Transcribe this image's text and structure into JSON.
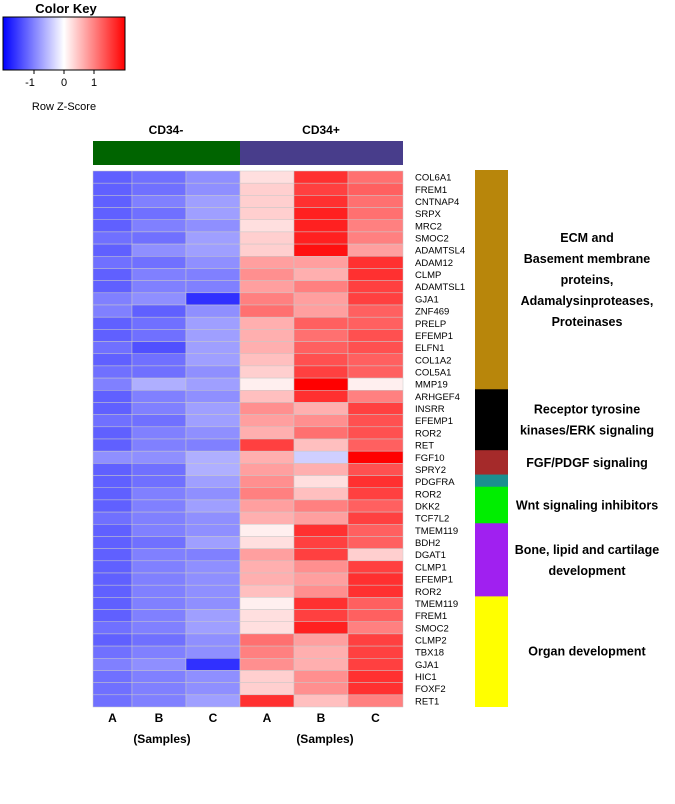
{
  "colors": {
    "low": "#0000ff",
    "mid": "#ffffff",
    "high": "#ff0000",
    "cd34neg": "#006400",
    "cd34pos": "#483d8b"
  },
  "color_key": {
    "title": "Color Key",
    "ticks": [
      "-1",
      "0",
      "1"
    ],
    "label": "Row Z-Score"
  },
  "chart_data": {
    "type": "heatmap",
    "title": "",
    "value_range": [
      -1.6,
      1.6
    ],
    "groups": [
      {
        "name": "CD34-",
        "columns": [
          "A",
          "B",
          "C"
        ]
      },
      {
        "name": "CD34+",
        "columns": [
          "A",
          "B",
          "C"
        ]
      }
    ],
    "columns": [
      "A",
      "B",
      "C",
      "A",
      "B",
      "C"
    ],
    "xlabel_groups": [
      "(Samples)",
      "(Samples)"
    ],
    "rows": [
      {
        "gene": "COL6A1",
        "values": [
          -1.0,
          -0.9,
          -0.7,
          0.2,
          1.3,
          0.9
        ]
      },
      {
        "gene": "FREM1",
        "values": [
          -1.0,
          -0.9,
          -0.7,
          0.3,
          1.2,
          1.0
        ]
      },
      {
        "gene": "CNTNAP4",
        "values": [
          -1.0,
          -0.8,
          -0.6,
          0.3,
          1.3,
          0.9
        ]
      },
      {
        "gene": "SRPX",
        "values": [
          -1.0,
          -0.9,
          -0.6,
          0.3,
          1.4,
          0.9
        ]
      },
      {
        "gene": "MRC2",
        "values": [
          -1.0,
          -0.8,
          -0.7,
          0.2,
          1.4,
          0.8
        ]
      },
      {
        "gene": "SMOC2",
        "values": [
          -0.9,
          -0.9,
          -0.6,
          0.3,
          1.4,
          0.8
        ]
      },
      {
        "gene": "ADAMTSL4",
        "values": [
          -1.0,
          -0.7,
          -0.6,
          0.3,
          1.5,
          0.6
        ]
      },
      {
        "gene": "ADAM12",
        "values": [
          -0.9,
          -0.9,
          -0.7,
          0.6,
          0.6,
          1.3
        ]
      },
      {
        "gene": "CLMP",
        "values": [
          -1.0,
          -0.8,
          -0.8,
          0.7,
          0.5,
          1.3
        ]
      },
      {
        "gene": "ADAMTSL1",
        "values": [
          -1.0,
          -0.8,
          -0.8,
          0.6,
          0.8,
          1.2
        ]
      },
      {
        "gene": "GJA1",
        "values": [
          -0.8,
          -0.7,
          -1.3,
          0.8,
          0.6,
          1.2
        ]
      },
      {
        "gene": "ZNF469",
        "values": [
          -0.8,
          -1.0,
          -0.7,
          0.9,
          0.6,
          1.0
        ]
      },
      {
        "gene": "PRELP",
        "values": [
          -1.0,
          -0.9,
          -0.6,
          0.5,
          1.0,
          1.0
        ]
      },
      {
        "gene": "EFEMP1",
        "values": [
          -1.0,
          -0.9,
          -0.6,
          0.5,
          0.9,
          1.1
        ]
      },
      {
        "gene": "ELFN1",
        "values": [
          -0.9,
          -1.1,
          -0.6,
          0.5,
          1.0,
          1.1
        ]
      },
      {
        "gene": "COL1A2",
        "values": [
          -1.0,
          -0.9,
          -0.6,
          0.4,
          1.1,
          1.0
        ]
      },
      {
        "gene": "COL5A1",
        "values": [
          -0.9,
          -0.9,
          -0.7,
          0.3,
          1.2,
          1.0
        ]
      },
      {
        "gene": "MMP19",
        "values": [
          -0.8,
          -0.5,
          -0.6,
          0.1,
          1.6,
          0.1
        ]
      },
      {
        "gene": "ARHGEF4",
        "values": [
          -1.0,
          -0.8,
          -0.7,
          0.4,
          1.3,
          0.8
        ]
      },
      {
        "gene": "INSRR",
        "values": [
          -1.0,
          -0.8,
          -0.6,
          0.7,
          0.5,
          1.2
        ]
      },
      {
        "gene": "EFEMP1",
        "values": [
          -0.9,
          -0.9,
          -0.6,
          0.6,
          0.7,
          1.1
        ]
      },
      {
        "gene": "ROR2",
        "values": [
          -1.0,
          -0.8,
          -0.7,
          0.5,
          0.9,
          1.1
        ]
      },
      {
        "gene": "RET",
        "values": [
          -1.0,
          -0.8,
          -0.8,
          1.2,
          0.4,
          1.0
        ]
      },
      {
        "gene": "FGF10",
        "values": [
          -0.7,
          -0.7,
          -0.5,
          0.5,
          -0.3,
          1.6
        ]
      },
      {
        "gene": "SPRY2",
        "values": [
          -1.0,
          -0.9,
          -0.5,
          0.6,
          0.5,
          1.1
        ]
      },
      {
        "gene": "PDGFRA",
        "values": [
          -1.0,
          -0.9,
          -0.6,
          0.7,
          0.2,
          1.3
        ]
      },
      {
        "gene": "ROR2",
        "values": [
          -1.0,
          -0.8,
          -0.7,
          0.8,
          0.4,
          1.2
        ]
      },
      {
        "gene": "DKK2",
        "values": [
          -1.0,
          -0.8,
          -0.6,
          0.6,
          0.8,
          1.0
        ]
      },
      {
        "gene": "TCF7L2",
        "values": [
          -0.9,
          -0.8,
          -0.7,
          0.5,
          0.6,
          1.2
        ]
      },
      {
        "gene": "TMEM119",
        "values": [
          -1.0,
          -0.8,
          -0.7,
          0.1,
          1.3,
          1.0
        ]
      },
      {
        "gene": "BDH2",
        "values": [
          -1.0,
          -0.9,
          -0.6,
          0.2,
          1.2,
          1.0
        ]
      },
      {
        "gene": "DGAT1",
        "values": [
          -1.0,
          -0.8,
          -0.8,
          0.6,
          1.2,
          0.3
        ]
      },
      {
        "gene": "CLMP1",
        "values": [
          -1.0,
          -0.8,
          -0.7,
          0.5,
          0.7,
          1.2
        ]
      },
      {
        "gene": "EFEMP1",
        "values": [
          -1.0,
          -0.8,
          -0.7,
          0.5,
          0.6,
          1.3
        ]
      },
      {
        "gene": "ROR2",
        "values": [
          -1.0,
          -0.8,
          -0.7,
          0.4,
          0.7,
          1.3
        ]
      },
      {
        "gene": "TMEM119",
        "values": [
          -1.0,
          -0.8,
          -0.7,
          0.1,
          1.3,
          1.0
        ]
      },
      {
        "gene": "FREM1",
        "values": [
          -1.0,
          -0.8,
          -0.6,
          0.2,
          1.2,
          1.0
        ]
      },
      {
        "gene": "SMOC2",
        "values": [
          -0.9,
          -0.8,
          -0.6,
          0.2,
          1.4,
          0.8
        ]
      },
      {
        "gene": "CLMP2",
        "values": [
          -1.0,
          -0.9,
          -0.7,
          0.9,
          0.6,
          1.2
        ]
      },
      {
        "gene": "TBX18",
        "values": [
          -0.9,
          -0.8,
          -0.7,
          0.8,
          0.5,
          1.2
        ]
      },
      {
        "gene": "GJA1",
        "values": [
          -0.8,
          -0.7,
          -1.3,
          0.7,
          0.5,
          1.2
        ]
      },
      {
        "gene": "HIC1",
        "values": [
          -0.9,
          -0.8,
          -0.7,
          0.3,
          0.7,
          1.3
        ]
      },
      {
        "gene": "FOXF2",
        "values": [
          -0.9,
          -0.8,
          -0.7,
          0.3,
          0.7,
          1.3
        ]
      },
      {
        "gene": "RET1",
        "values": [
          -0.9,
          -0.8,
          -0.6,
          1.3,
          0.4,
          0.8
        ]
      }
    ],
    "categories": [
      {
        "label_lines": [
          "ECM and",
          "Basement membrane",
          "proteins,",
          "Adamalysinproteases,",
          "Proteinases"
        ],
        "start_row": 0,
        "end_row": 17,
        "color": "#b8860b"
      },
      {
        "label_lines": [
          "Receptor tyrosine",
          "kinases/ERK signaling"
        ],
        "start_row": 18,
        "end_row": 22,
        "color": "#000000"
      },
      {
        "label_lines": [
          "FGF/PDGF signaling"
        ],
        "start_row": 23,
        "end_row": 24,
        "color": "#a52a2a"
      },
      {
        "label_lines": [],
        "start_row": 25,
        "end_row": 25,
        "color": "#1a8f8f"
      },
      {
        "label_lines": [
          "Wnt signaling inhibitors"
        ],
        "start_row": 26,
        "end_row": 28,
        "color": "#00ee00"
      },
      {
        "label_lines": [
          "Bone, lipid and cartilage",
          "development"
        ],
        "start_row": 29,
        "end_row": 34,
        "color": "#a020f0"
      },
      {
        "label_lines": [
          "Organ development"
        ],
        "start_row": 35,
        "end_row": 43,
        "color": "#ffff00"
      }
    ]
  }
}
